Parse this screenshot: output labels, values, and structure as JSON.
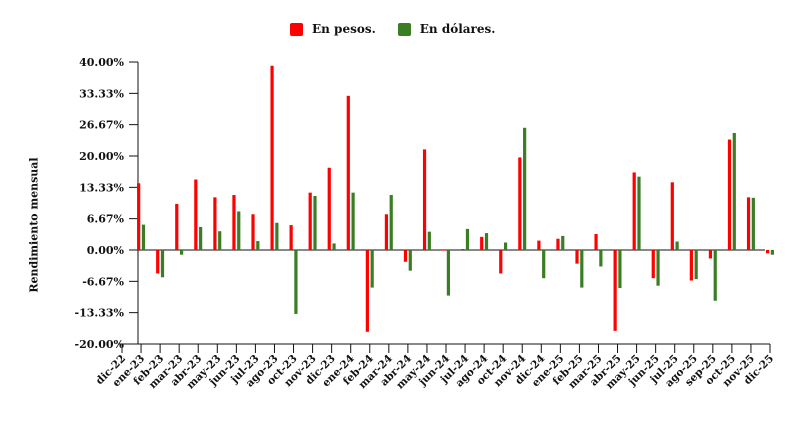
{
  "chart_data": {
    "type": "bar",
    "ylabel": "Rendimiento mensual",
    "xlabel": "",
    "ylim": [
      -20,
      40
    ],
    "yticks": [
      "40.00%",
      "33.33%",
      "26.67%",
      "20.00%",
      "13.33%",
      "6.67%",
      "0.00%",
      "-6.67%",
      "-13.33%",
      "-20.00%"
    ],
    "ytick_values": [
      40,
      33.33,
      26.67,
      20,
      13.33,
      6.67,
      0,
      -6.67,
      -13.33,
      -20
    ],
    "legend_position": "top-center",
    "grid": false,
    "categories": [
      "dic-22",
      "ene-23",
      "feb-23",
      "mar-23",
      "abr-23",
      "may-23",
      "jun-23",
      "jul-23",
      "ago-23",
      "oct-23",
      "nov-23",
      "dic-23",
      "ene-24",
      "feb-24",
      "mar-24",
      "abr-24",
      "may-24",
      "jun-24",
      "jul-24",
      "ago-24",
      "oct-24",
      "nov-24",
      "dic-24",
      "ene-25",
      "feb-25",
      "mar-25",
      "abr-25",
      "may-25",
      "jun-25",
      "jul-25",
      "ago-25",
      "sep-25",
      "oct-25",
      "nov-25",
      "dic-25"
    ],
    "series": [
      {
        "name": "En pesos.",
        "color": "#ff0000",
        "values": [
          null,
          14.2,
          -5.0,
          9.8,
          15.0,
          11.2,
          11.7,
          7.6,
          39.2,
          5.3,
          12.2,
          17.5,
          32.8,
          -17.4,
          7.6,
          -2.5,
          21.4,
          0.0,
          0.2,
          2.8,
          -5.0,
          19.7,
          2.0,
          2.4,
          -2.9,
          3.4,
          -17.2,
          16.5,
          -6.0,
          14.4,
          -6.5,
          -1.8,
          23.5,
          11.2,
          -0.7
        ]
      },
      {
        "name": "En dólares.",
        "color": "#3a7d23",
        "values": [
          null,
          5.4,
          -5.8,
          -1.0,
          4.9,
          4.0,
          8.2,
          1.9,
          5.8,
          -13.6,
          11.5,
          1.4,
          12.2,
          -8.0,
          11.7,
          -4.4,
          3.9,
          -9.7,
          4.5,
          3.6,
          1.6,
          26.0,
          -6.0,
          3.0,
          -8.0,
          -3.5,
          -8.1,
          15.6,
          -7.6,
          1.8,
          -6.2,
          -10.8,
          24.9,
          11.1,
          -1.0
        ]
      }
    ]
  }
}
